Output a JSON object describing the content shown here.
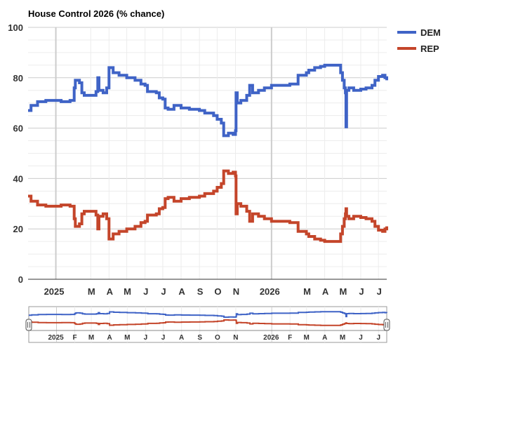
{
  "chart_data": {
    "type": "line",
    "title": "House Control 2026 (% chance)",
    "xlabel": "",
    "ylabel": "",
    "ylim": [
      0,
      100
    ],
    "yticks": [
      "0",
      "20",
      "40",
      "60",
      "80",
      "100"
    ],
    "x_range": [
      "2024-11-15",
      "2026-07-15"
    ],
    "x_tick_labels": [
      {
        "date": "2025-01-01",
        "label": "2025",
        "major": true
      },
      {
        "date": "2025-03-01",
        "label": "M"
      },
      {
        "date": "2025-04-01",
        "label": "A"
      },
      {
        "date": "2025-05-01",
        "label": "M"
      },
      {
        "date": "2025-06-01",
        "label": "J"
      },
      {
        "date": "2025-07-01",
        "label": "J"
      },
      {
        "date": "2025-08-01",
        "label": "A"
      },
      {
        "date": "2025-09-01",
        "label": "S"
      },
      {
        "date": "2025-10-01",
        "label": "O"
      },
      {
        "date": "2025-11-01",
        "label": "N"
      },
      {
        "date": "2026-01-01",
        "label": "2026",
        "major": true
      },
      {
        "date": "2026-03-01",
        "label": "M"
      },
      {
        "date": "2026-04-01",
        "label": "A"
      },
      {
        "date": "2026-05-01",
        "label": "M"
      },
      {
        "date": "2026-06-01",
        "label": "J"
      },
      {
        "date": "2026-07-01",
        "label": "J"
      }
    ],
    "navigator_tick_labels": [
      {
        "date": "2025-01-01",
        "label": "2025",
        "major": true
      },
      {
        "date": "2025-02-01",
        "label": "F"
      },
      {
        "date": "2025-03-01",
        "label": "M"
      },
      {
        "date": "2025-04-01",
        "label": "A"
      },
      {
        "date": "2025-05-01",
        "label": "M"
      },
      {
        "date": "2025-06-01",
        "label": "J"
      },
      {
        "date": "2025-07-01",
        "label": "J"
      },
      {
        "date": "2025-08-01",
        "label": "A"
      },
      {
        "date": "2025-09-01",
        "label": "S"
      },
      {
        "date": "2025-10-01",
        "label": "O"
      },
      {
        "date": "2025-11-01",
        "label": "N"
      },
      {
        "date": "2026-01-01",
        "label": "2026",
        "major": true
      },
      {
        "date": "2026-02-01",
        "label": "F"
      },
      {
        "date": "2026-03-01",
        "label": "M"
      },
      {
        "date": "2026-04-01",
        "label": "A"
      },
      {
        "date": "2026-05-01",
        "label": "M"
      },
      {
        "date": "2026-06-01",
        "label": "J"
      },
      {
        "date": "2026-07-01",
        "label": "J"
      }
    ],
    "grid": true,
    "legend_position": "right",
    "series": [
      {
        "name": "DEM",
        "color": "#3f63c6",
        "points": [
          [
            "2024-11-15",
            67
          ],
          [
            "2024-11-20",
            69
          ],
          [
            "2024-12-01",
            70.5
          ],
          [
            "2024-12-15",
            71
          ],
          [
            "2025-01-01",
            71
          ],
          [
            "2025-01-10",
            70.5
          ],
          [
            "2025-01-25",
            71
          ],
          [
            "2025-02-01",
            76
          ],
          [
            "2025-02-03",
            79
          ],
          [
            "2025-02-10",
            78
          ],
          [
            "2025-02-14",
            74
          ],
          [
            "2025-02-18",
            73
          ],
          [
            "2025-03-01",
            73
          ],
          [
            "2025-03-10",
            74.5
          ],
          [
            "2025-03-13",
            80
          ],
          [
            "2025-03-15",
            75
          ],
          [
            "2025-03-22",
            74
          ],
          [
            "2025-03-28",
            76
          ],
          [
            "2025-04-01",
            84
          ],
          [
            "2025-04-08",
            82
          ],
          [
            "2025-04-18",
            81
          ],
          [
            "2025-05-01",
            80
          ],
          [
            "2025-05-15",
            79
          ],
          [
            "2025-05-25",
            77.5
          ],
          [
            "2025-06-01",
            77
          ],
          [
            "2025-06-05",
            74.5
          ],
          [
            "2025-06-20",
            74
          ],
          [
            "2025-06-25",
            72
          ],
          [
            "2025-07-01",
            71.5
          ],
          [
            "2025-07-05",
            68
          ],
          [
            "2025-07-10",
            67.5
          ],
          [
            "2025-07-20",
            69
          ],
          [
            "2025-08-01",
            68
          ],
          [
            "2025-08-15",
            67.5
          ],
          [
            "2025-09-01",
            67
          ],
          [
            "2025-09-10",
            66
          ],
          [
            "2025-09-25",
            65
          ],
          [
            "2025-10-01",
            63.5
          ],
          [
            "2025-10-08",
            62
          ],
          [
            "2025-10-12",
            57
          ],
          [
            "2025-10-20",
            58
          ],
          [
            "2025-10-28",
            57.5
          ],
          [
            "2025-11-01",
            59
          ],
          [
            "2025-11-02",
            74
          ],
          [
            "2025-11-04",
            70
          ],
          [
            "2025-11-10",
            71
          ],
          [
            "2025-11-20",
            73
          ],
          [
            "2025-11-25",
            77
          ],
          [
            "2025-11-30",
            74
          ],
          [
            "2025-12-10",
            75
          ],
          [
            "2025-12-20",
            76
          ],
          [
            "2026-01-01",
            77
          ],
          [
            "2026-01-15",
            77
          ],
          [
            "2026-02-01",
            77.5
          ],
          [
            "2026-02-10",
            77.5
          ],
          [
            "2026-02-15",
            81
          ],
          [
            "2026-03-01",
            82
          ],
          [
            "2026-03-05",
            83
          ],
          [
            "2026-03-15",
            84
          ],
          [
            "2026-03-25",
            84.5
          ],
          [
            "2026-04-01",
            85
          ],
          [
            "2026-04-15",
            85
          ],
          [
            "2026-04-25",
            85
          ],
          [
            "2026-04-28",
            82
          ],
          [
            "2026-05-01",
            79
          ],
          [
            "2026-05-04",
            76
          ],
          [
            "2026-05-06",
            74
          ],
          [
            "2026-05-07",
            60.5
          ],
          [
            "2026-05-08",
            75
          ],
          [
            "2026-05-12",
            76
          ],
          [
            "2026-05-20",
            75
          ],
          [
            "2026-06-01",
            75.5
          ],
          [
            "2026-06-10",
            76
          ],
          [
            "2026-06-20",
            77
          ],
          [
            "2026-06-25",
            79
          ],
          [
            "2026-07-01",
            80.5
          ],
          [
            "2026-07-08",
            81
          ],
          [
            "2026-07-12",
            80
          ],
          [
            "2026-07-15",
            79
          ]
        ]
      },
      {
        "name": "REP",
        "color": "#c4452a",
        "points": [
          [
            "2024-11-15",
            33
          ],
          [
            "2024-11-20",
            31
          ],
          [
            "2024-12-01",
            29.5
          ],
          [
            "2024-12-15",
            29
          ],
          [
            "2025-01-01",
            29
          ],
          [
            "2025-01-10",
            29.5
          ],
          [
            "2025-01-25",
            29
          ],
          [
            "2025-02-01",
            24
          ],
          [
            "2025-02-03",
            21
          ],
          [
            "2025-02-10",
            22
          ],
          [
            "2025-02-14",
            26
          ],
          [
            "2025-02-18",
            27
          ],
          [
            "2025-03-01",
            27
          ],
          [
            "2025-03-10",
            25.5
          ],
          [
            "2025-03-13",
            20
          ],
          [
            "2025-03-15",
            25
          ],
          [
            "2025-03-22",
            26
          ],
          [
            "2025-03-28",
            24
          ],
          [
            "2025-04-01",
            16
          ],
          [
            "2025-04-08",
            18
          ],
          [
            "2025-04-18",
            19
          ],
          [
            "2025-05-01",
            20
          ],
          [
            "2025-05-15",
            21
          ],
          [
            "2025-05-25",
            22.5
          ],
          [
            "2025-06-01",
            23
          ],
          [
            "2025-06-05",
            25.5
          ],
          [
            "2025-06-20",
            26
          ],
          [
            "2025-06-25",
            28
          ],
          [
            "2025-07-01",
            28.5
          ],
          [
            "2025-07-05",
            32
          ],
          [
            "2025-07-10",
            32.5
          ],
          [
            "2025-07-20",
            31
          ],
          [
            "2025-08-01",
            32
          ],
          [
            "2025-08-15",
            32.5
          ],
          [
            "2025-09-01",
            33
          ],
          [
            "2025-09-10",
            34
          ],
          [
            "2025-09-25",
            35
          ],
          [
            "2025-10-01",
            36.5
          ],
          [
            "2025-10-08",
            38
          ],
          [
            "2025-10-12",
            43
          ],
          [
            "2025-10-20",
            42
          ],
          [
            "2025-10-28",
            42.5
          ],
          [
            "2025-11-01",
            41
          ],
          [
            "2025-11-02",
            26
          ],
          [
            "2025-11-04",
            30
          ],
          [
            "2025-11-10",
            29
          ],
          [
            "2025-11-20",
            27
          ],
          [
            "2025-11-25",
            23
          ],
          [
            "2025-11-30",
            26
          ],
          [
            "2025-12-10",
            25
          ],
          [
            "2025-12-20",
            24
          ],
          [
            "2026-01-01",
            23
          ],
          [
            "2026-01-15",
            23
          ],
          [
            "2026-02-01",
            22.5
          ],
          [
            "2026-02-10",
            22.5
          ],
          [
            "2026-02-15",
            19
          ],
          [
            "2026-03-01",
            18
          ],
          [
            "2026-03-05",
            17
          ],
          [
            "2026-03-15",
            16
          ],
          [
            "2026-03-25",
            15.5
          ],
          [
            "2026-04-01",
            15
          ],
          [
            "2026-04-15",
            15
          ],
          [
            "2026-04-25",
            15
          ],
          [
            "2026-04-28",
            18
          ],
          [
            "2026-05-01",
            21
          ],
          [
            "2026-05-04",
            24
          ],
          [
            "2026-05-06",
            26
          ],
          [
            "2026-05-07",
            28
          ],
          [
            "2026-05-08",
            25
          ],
          [
            "2026-05-12",
            24
          ],
          [
            "2026-05-20",
            25
          ],
          [
            "2026-06-01",
            24.5
          ],
          [
            "2026-06-10",
            24
          ],
          [
            "2026-06-20",
            23
          ],
          [
            "2026-06-25",
            21
          ],
          [
            "2026-07-01",
            19.5
          ],
          [
            "2026-07-08",
            19
          ],
          [
            "2026-07-12",
            20
          ],
          [
            "2026-07-15",
            21
          ]
        ]
      }
    ]
  }
}
